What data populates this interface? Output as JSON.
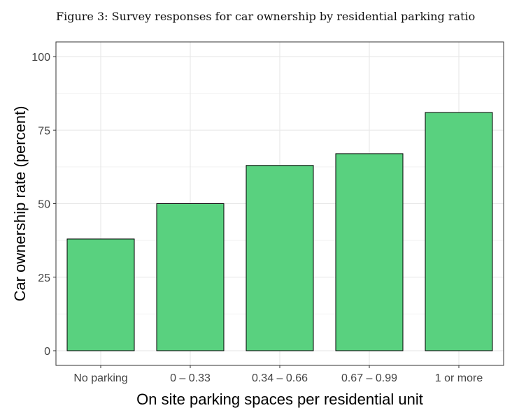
{
  "caption": "Figure 3: Survey responses for car ownership by residential parking ratio",
  "colors": {
    "bar_fill": "#59d17f",
    "bar_stroke": "#000000",
    "grid_major": "#e6e6e6",
    "grid_minor": "#f2f2f2",
    "panel_border": "#333333"
  },
  "chart_data": {
    "type": "bar",
    "categories": [
      "No parking",
      "0 – 0.33",
      "0.34 – 0.66",
      "0.67 – 0.99",
      "1 or more"
    ],
    "values": [
      38,
      50,
      63,
      67,
      81
    ],
    "xlabel": "On site parking spaces per residential unit",
    "ylabel": "Car ownership rate (percent)",
    "ylim": [
      0,
      100
    ],
    "yticks": [
      0,
      25,
      50,
      75,
      100
    ],
    "grid": true,
    "legend": "none"
  }
}
